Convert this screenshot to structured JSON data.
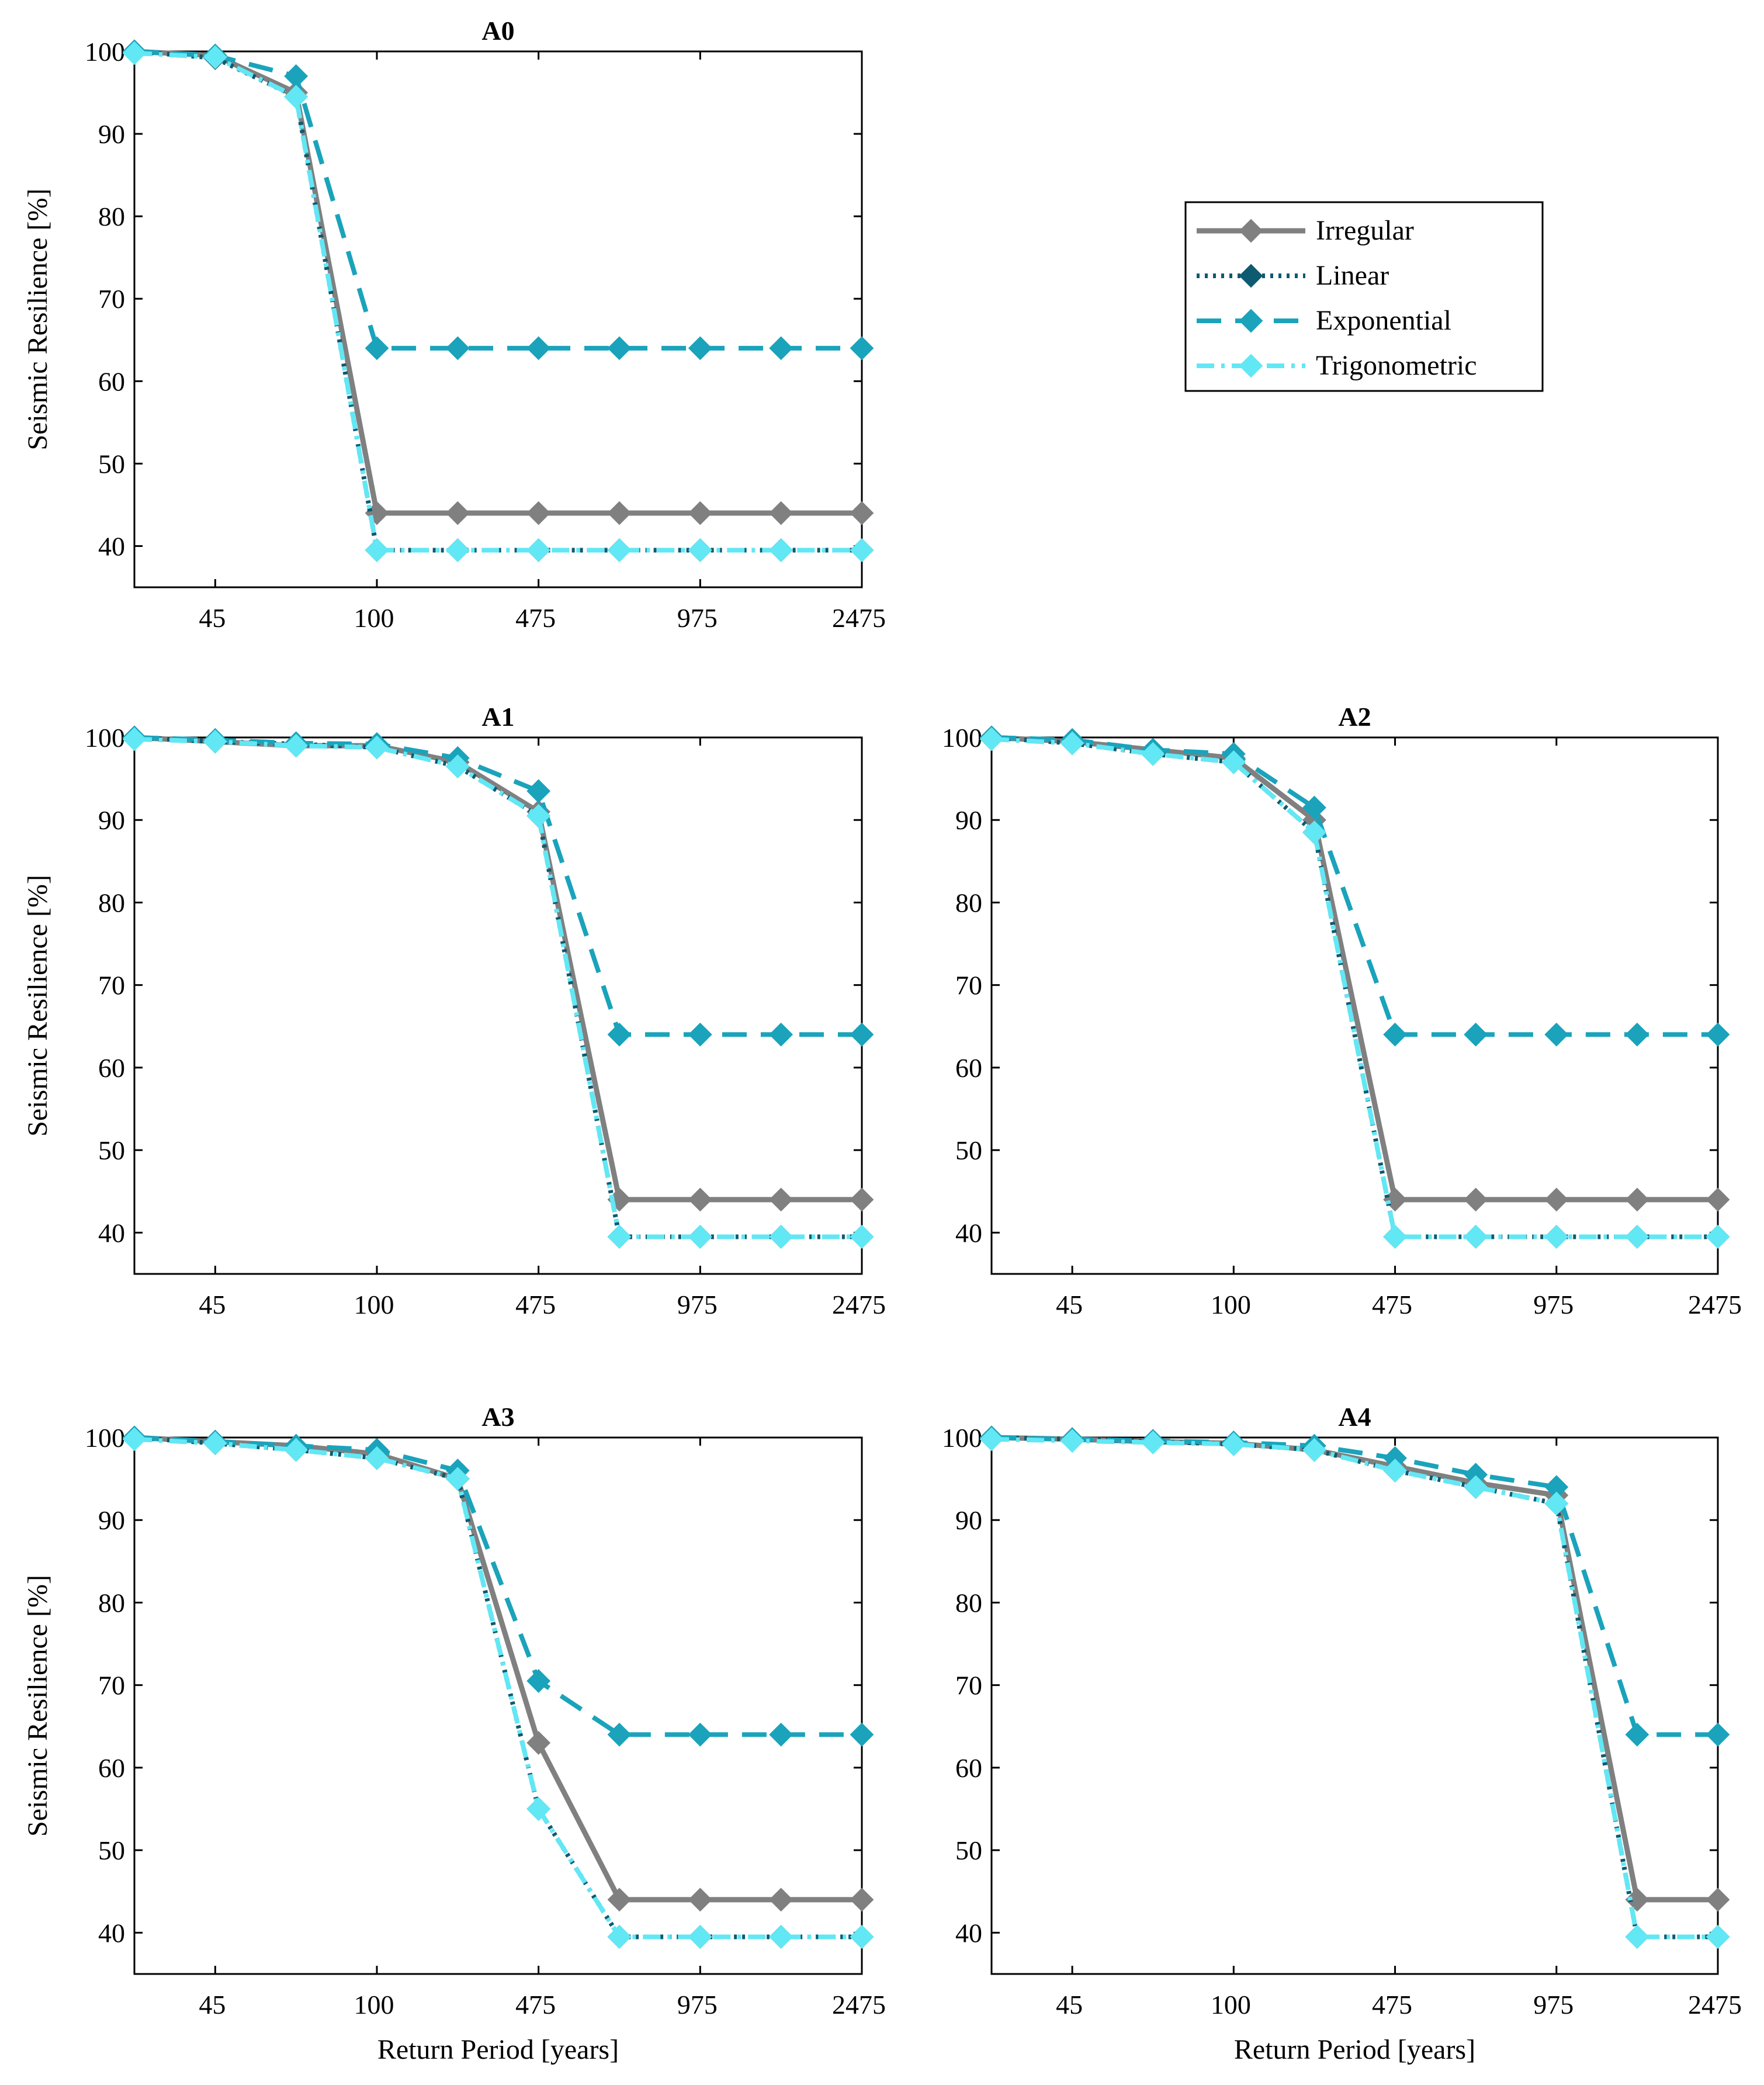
{
  "colors": {
    "irregular": "#808080",
    "linear": "#0e5a70",
    "exponential": "#1aa3bb",
    "trigonometric": "#62e7f4",
    "axis": "#000000"
  },
  "legend": {
    "placement": "top-right",
    "entries": [
      "Irregular",
      "Linear",
      "Exponential",
      "Trigonometric"
    ]
  },
  "chart_data": [
    {
      "id": "A0",
      "type": "line",
      "title": "A0",
      "xlabel": "",
      "ylabel": "Seismic Resilience [%]",
      "x": [
        1,
        2,
        3,
        4,
        5,
        6,
        7,
        8,
        9,
        10
      ],
      "xlim": [
        1,
        10
      ],
      "xticks": [
        2,
        4,
        6,
        8,
        10
      ],
      "xticklabels": [
        "45",
        "100",
        "475",
        "975",
        "2475"
      ],
      "ylim": [
        35,
        100
      ],
      "yticks": [
        40,
        50,
        60,
        70,
        80,
        90,
        100
      ],
      "yticklabels": [
        "40",
        "50",
        "60",
        "70",
        "80",
        "90",
        "100"
      ],
      "series": [
        {
          "name": "Irregular",
          "values": [
            100,
            99.5,
            95,
            44,
            44,
            44,
            44,
            44,
            44,
            44
          ]
        },
        {
          "name": "Linear",
          "values": [
            100,
            99.2,
            94.5,
            39.5,
            39.5,
            39.5,
            39.5,
            39.5,
            39.5,
            39.5
          ]
        },
        {
          "name": "Exponential",
          "values": [
            100,
            99.5,
            97,
            64,
            64,
            64,
            64,
            64,
            64,
            64
          ]
        },
        {
          "name": "Trigonometric",
          "values": [
            99.8,
            99.3,
            94.5,
            39.5,
            39.5,
            39.5,
            39.5,
            39.5,
            39.5,
            39.5
          ]
        }
      ]
    },
    {
      "id": "A1",
      "type": "line",
      "title": "A1",
      "xlabel": "",
      "ylabel": "Seismic Resilience [%]",
      "x": [
        1,
        2,
        3,
        4,
        5,
        6,
        7,
        8,
        9,
        10
      ],
      "xlim": [
        1,
        10
      ],
      "xticks": [
        2,
        4,
        6,
        8,
        10
      ],
      "xticklabels": [
        "45",
        "100",
        "475",
        "975",
        "2475"
      ],
      "ylim": [
        35,
        100
      ],
      "yticks": [
        40,
        50,
        60,
        70,
        80,
        90,
        100
      ],
      "yticklabels": [
        "40",
        "50",
        "60",
        "70",
        "80",
        "90",
        "100"
      ],
      "series": [
        {
          "name": "Irregular",
          "values": [
            100,
            99.5,
            99,
            99,
            97,
            91,
            44,
            44,
            44,
            44
          ]
        },
        {
          "name": "Linear",
          "values": [
            100,
            99.5,
            99.2,
            98.8,
            96.5,
            90.5,
            39.5,
            39.5,
            39.5,
            39.5
          ]
        },
        {
          "name": "Exponential",
          "values": [
            100,
            99.7,
            99.3,
            99.2,
            97.5,
            93.5,
            64,
            64,
            64,
            64
          ]
        },
        {
          "name": "Trigonometric",
          "values": [
            99.8,
            99.5,
            99,
            98.8,
            96.5,
            90.5,
            39.5,
            39.5,
            39.5,
            39.5
          ]
        }
      ]
    },
    {
      "id": "A2",
      "type": "line",
      "title": "A2",
      "xlabel": "",
      "ylabel": "",
      "x": [
        1,
        2,
        3,
        4,
        5,
        6,
        7,
        8,
        9,
        10
      ],
      "xlim": [
        1,
        10
      ],
      "xticks": [
        2,
        4,
        6,
        8,
        10
      ],
      "xticklabels": [
        "45",
        "100",
        "475",
        "975",
        "2475"
      ],
      "ylim": [
        35,
        100
      ],
      "yticks": [
        40,
        50,
        60,
        70,
        80,
        90,
        100
      ],
      "yticklabels": [
        "40",
        "50",
        "60",
        "70",
        "80",
        "90",
        "100"
      ],
      "series": [
        {
          "name": "Irregular",
          "values": [
            100,
            99.5,
            98.5,
            97.5,
            90,
            44,
            44,
            44,
            44,
            44
          ]
        },
        {
          "name": "Linear",
          "values": [
            100,
            99.3,
            98,
            97,
            88.5,
            39.5,
            39.5,
            39.5,
            39.5,
            39.5
          ]
        },
        {
          "name": "Exponential",
          "values": [
            100,
            99.7,
            98.5,
            98,
            91.5,
            64,
            64,
            64,
            64,
            64
          ]
        },
        {
          "name": "Trigonometric",
          "values": [
            99.8,
            99.3,
            98,
            97,
            88.5,
            39.5,
            39.5,
            39.5,
            39.5,
            39.5
          ]
        }
      ]
    },
    {
      "id": "A3",
      "type": "line",
      "title": "A3",
      "xlabel": "Return Period [years]",
      "ylabel": "Seismic Resilience [%]",
      "x": [
        1,
        2,
        3,
        4,
        5,
        6,
        7,
        8,
        9,
        10
      ],
      "xlim": [
        1,
        10
      ],
      "xticks": [
        2,
        4,
        6,
        8,
        10
      ],
      "xticklabels": [
        "45",
        "100",
        "475",
        "975",
        "2475"
      ],
      "ylim": [
        35,
        100
      ],
      "yticks": [
        40,
        50,
        60,
        70,
        80,
        90,
        100
      ],
      "yticklabels": [
        "40",
        "50",
        "60",
        "70",
        "80",
        "90",
        "100"
      ],
      "series": [
        {
          "name": "Irregular",
          "values": [
            100,
            99.5,
            99,
            98,
            95,
            63,
            44,
            44,
            44,
            44
          ]
        },
        {
          "name": "Linear",
          "values": [
            100,
            99.3,
            98.5,
            97.5,
            95,
            55,
            39.5,
            39.5,
            39.5,
            39.5
          ]
        },
        {
          "name": "Exponential",
          "values": [
            100,
            99.5,
            99,
            98.5,
            96,
            70.5,
            64,
            64,
            64,
            64
          ]
        },
        {
          "name": "Trigonometric",
          "values": [
            99.8,
            99.3,
            98.5,
            97.5,
            95,
            55,
            39.5,
            39.5,
            39.5,
            39.5
          ]
        }
      ]
    },
    {
      "id": "A4",
      "type": "line",
      "title": "A4",
      "xlabel": "Return Period [years]",
      "ylabel": "",
      "x": [
        1,
        2,
        3,
        4,
        5,
        6,
        7,
        8,
        9,
        10
      ],
      "xlim": [
        1,
        10
      ],
      "xticks": [
        2,
        4,
        6,
        8,
        10
      ],
      "xticklabels": [
        "45",
        "100",
        "475",
        "975",
        "2475"
      ],
      "ylim": [
        35,
        100
      ],
      "yticks": [
        40,
        50,
        60,
        70,
        80,
        90,
        100
      ],
      "yticklabels": [
        "40",
        "50",
        "60",
        "70",
        "80",
        "90",
        "100"
      ],
      "series": [
        {
          "name": "Irregular",
          "values": [
            100,
            99.8,
            99.5,
            99.3,
            98.5,
            96.5,
            94.5,
            93,
            44,
            44
          ]
        },
        {
          "name": "Linear",
          "values": [
            100,
            99.8,
            99.5,
            99.2,
            98.5,
            96,
            94,
            92,
            39.5,
            39.5
          ]
        },
        {
          "name": "Exponential",
          "values": [
            100,
            99.8,
            99.6,
            99.4,
            99,
            97.5,
            95.5,
            94,
            64,
            64
          ]
        },
        {
          "name": "Trigonometric",
          "values": [
            99.8,
            99.6,
            99.4,
            99.2,
            98.5,
            96,
            94,
            92,
            39.5,
            39.5
          ]
        }
      ]
    }
  ]
}
